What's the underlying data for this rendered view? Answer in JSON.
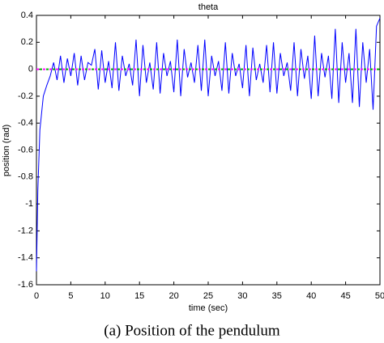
{
  "chart_data": {
    "type": "line",
    "title": "theta",
    "x_label": "time (sec)",
    "y_label": "position (rad)",
    "caption": "(a)  Position of the pendulum",
    "x": [
      0,
      0.2,
      0.5,
      1,
      1.5,
      2,
      2.5,
      3,
      3.5,
      4,
      4.5,
      5,
      5.5,
      6,
      6.5,
      7,
      7.5,
      8,
      8.5,
      9,
      9.5,
      10,
      10.5,
      11,
      11.5,
      12,
      12.5,
      13,
      13.5,
      14,
      14.5,
      15,
      15.5,
      16,
      16.5,
      17,
      17.5,
      18,
      18.5,
      19,
      19.5,
      20,
      20.5,
      21,
      21.5,
      22,
      22.5,
      23,
      23.5,
      24,
      24.5,
      25,
      25.5,
      26,
      26.5,
      27,
      27.5,
      28,
      28.5,
      29,
      29.5,
      30,
      30.5,
      31,
      31.5,
      32,
      32.5,
      33,
      33.5,
      34,
      34.5,
      35,
      35.5,
      36,
      36.5,
      37,
      37.5,
      38,
      38.5,
      39,
      39.5,
      40,
      40.5,
      41,
      41.5,
      42,
      42.5,
      43,
      43.5,
      44,
      44.5,
      45,
      45.5,
      46,
      46.5,
      47,
      47.5,
      48,
      48.5,
      49,
      49.5,
      50
    ],
    "series": [
      {
        "color": "#0000ff",
        "values": [
          -1.5,
          -0.9,
          -0.45,
          -0.2,
          -0.12,
          -0.05,
          0.05,
          -0.08,
          0.1,
          -0.1,
          0.08,
          -0.05,
          0.12,
          -0.12,
          0.1,
          -0.08,
          0.05,
          0.03,
          0.15,
          -0.15,
          0.14,
          -0.1,
          0.06,
          -0.14,
          0.2,
          -0.16,
          0.1,
          -0.05,
          0.04,
          -0.12,
          0.22,
          -0.2,
          0.18,
          -0.1,
          0.05,
          -0.15,
          0.2,
          -0.18,
          0.12,
          -0.05,
          0.06,
          -0.17,
          0.22,
          -0.2,
          0.15,
          -0.06,
          0.05,
          -0.1,
          0.18,
          -0.16,
          0.22,
          -0.2,
          0.1,
          -0.05,
          0.06,
          -0.16,
          0.2,
          -0.18,
          0.12,
          -0.05,
          0.04,
          -0.14,
          0.18,
          -0.2,
          0.16,
          -0.08,
          0.04,
          -0.1,
          0.18,
          -0.17,
          0.2,
          -0.18,
          0.12,
          -0.05,
          0.05,
          -0.16,
          0.2,
          -0.2,
          0.15,
          -0.07,
          0.1,
          -0.22,
          0.25,
          -0.2,
          0.12,
          -0.06,
          0.1,
          -0.22,
          0.3,
          -0.25,
          0.2,
          -0.1,
          0.12,
          -0.25,
          0.3,
          -0.28,
          0.2,
          -0.1,
          0.15,
          -0.3,
          0.32,
          0.38
        ]
      },
      {
        "color": "#ff00ff",
        "dashed": true,
        "x": [
          0,
          50
        ],
        "values": [
          0,
          0
        ]
      },
      {
        "color": "#00b000",
        "dashed": true,
        "x": [
          0,
          50
        ],
        "values": [
          0,
          0
        ]
      }
    ],
    "xlim": [
      0,
      50
    ],
    "xticks": [
      0,
      5,
      10,
      15,
      20,
      25,
      30,
      35,
      40,
      45,
      50
    ],
    "ylim": [
      -1.6,
      0.4
    ],
    "yticks": [
      0.4,
      0.2,
      0,
      -0.2,
      -0.4,
      -0.6,
      -0.8,
      -1,
      -1.2,
      -1.4,
      -1.6
    ]
  }
}
